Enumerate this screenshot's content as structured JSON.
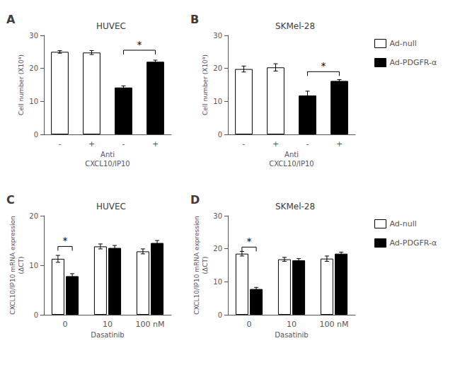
{
  "chart_data": [
    {
      "type": "bar",
      "title": "HUVEC",
      "ylabel": "Cell number (X10⁴)",
      "xlabel": "Anti\nCXCL10/IP10",
      "categories": [
        "-",
        "+",
        "-",
        "+"
      ],
      "series": [
        {
          "name": "Ad-null",
          "color": "white",
          "values": [
            25.0,
            24.8,
            null,
            null
          ],
          "errors": [
            0.4,
            0.6,
            null,
            null
          ]
        },
        {
          "name": "Ad-PDGFR-α",
          "color": "black",
          "values": [
            null,
            null,
            14.2,
            22.0
          ],
          "errors": [
            null,
            null,
            0.5,
            0.5
          ]
        }
      ],
      "ylim": [
        0,
        30
      ],
      "yticks": [
        0,
        10,
        20,
        30
      ],
      "grid": false,
      "annotations": [
        {
          "text": "A"
        },
        {
          "text": "*",
          "bars": [
            [
              1,
              2
            ],
            [
              1,
              3
            ]
          ],
          "y": 25.5
        }
      ]
    },
    {
      "type": "bar",
      "title": "SKMel-28",
      "ylabel": "Cell number (X10⁴)",
      "xlabel": "Anti\nCXCL10/IP10",
      "categories": [
        "-",
        "+",
        "-",
        "+"
      ],
      "series": [
        {
          "name": "Ad-null",
          "color": "white",
          "values": [
            19.8,
            20.3,
            null,
            null
          ],
          "errors": [
            0.9,
            1.1,
            null,
            null
          ]
        },
        {
          "name": "Ad-PDGFR-α",
          "color": "black",
          "values": [
            null,
            null,
            11.8,
            16.2
          ],
          "errors": [
            null,
            null,
            1.3,
            0.4
          ]
        }
      ],
      "ylim": [
        0,
        30
      ],
      "yticks": [
        0,
        10,
        20,
        30
      ],
      "grid": false,
      "legend": "right",
      "annotations": [
        {
          "text": "B"
        },
        {
          "text": "*",
          "bars": [
            [
              1,
              2
            ],
            [
              1,
              3
            ]
          ],
          "y": 19.0
        }
      ]
    },
    {
      "type": "bar",
      "title": "HUVEC",
      "ylabel": "CXCL10/IP10 mRNA expression\n(ΔCT)",
      "xlabel": "Dasatinib",
      "categories": [
        "0",
        "10",
        "100 nM"
      ],
      "series": [
        {
          "name": "Ad-null",
          "color": "white",
          "values": [
            11.3,
            13.8,
            12.8
          ],
          "errors": [
            0.7,
            0.5,
            0.5
          ]
        },
        {
          "name": "Ad-PDGFR-α",
          "color": "black",
          "values": [
            7.8,
            13.5,
            14.5
          ],
          "errors": [
            0.5,
            0.5,
            0.5
          ]
        }
      ],
      "ylim": [
        0,
        20
      ],
      "yticks": [
        0,
        10,
        20
      ],
      "grid": false,
      "annotations": [
        {
          "text": "C"
        },
        {
          "text": "*",
          "bars": [
            [
              0,
              0
            ],
            [
              1,
              0
            ]
          ],
          "y": 13.8
        }
      ]
    },
    {
      "type": "bar",
      "title": "SKMel-28",
      "ylabel": "CXCL10/IP10 mRNA expression\n(ΔCT)",
      "xlabel": "Dasatinib",
      "categories": [
        "0",
        "10",
        "100 nM"
      ],
      "series": [
        {
          "name": "Ad-null",
          "color": "white",
          "values": [
            18.5,
            16.8,
            17.0
          ],
          "errors": [
            0.7,
            0.6,
            0.8
          ]
        },
        {
          "name": "Ad-PDGFR-α",
          "color": "black",
          "values": [
            7.8,
            16.5,
            18.5
          ],
          "errors": [
            0.5,
            0.5,
            0.5
          ]
        }
      ],
      "ylim": [
        0,
        30
      ],
      "yticks": [
        0,
        10,
        20,
        30
      ],
      "grid": false,
      "legend": "right",
      "annotations": [
        {
          "text": "D"
        },
        {
          "text": "*",
          "bars": [
            [
              0,
              0
            ],
            [
              1,
              0
            ]
          ],
          "y": 20.5
        }
      ]
    }
  ]
}
